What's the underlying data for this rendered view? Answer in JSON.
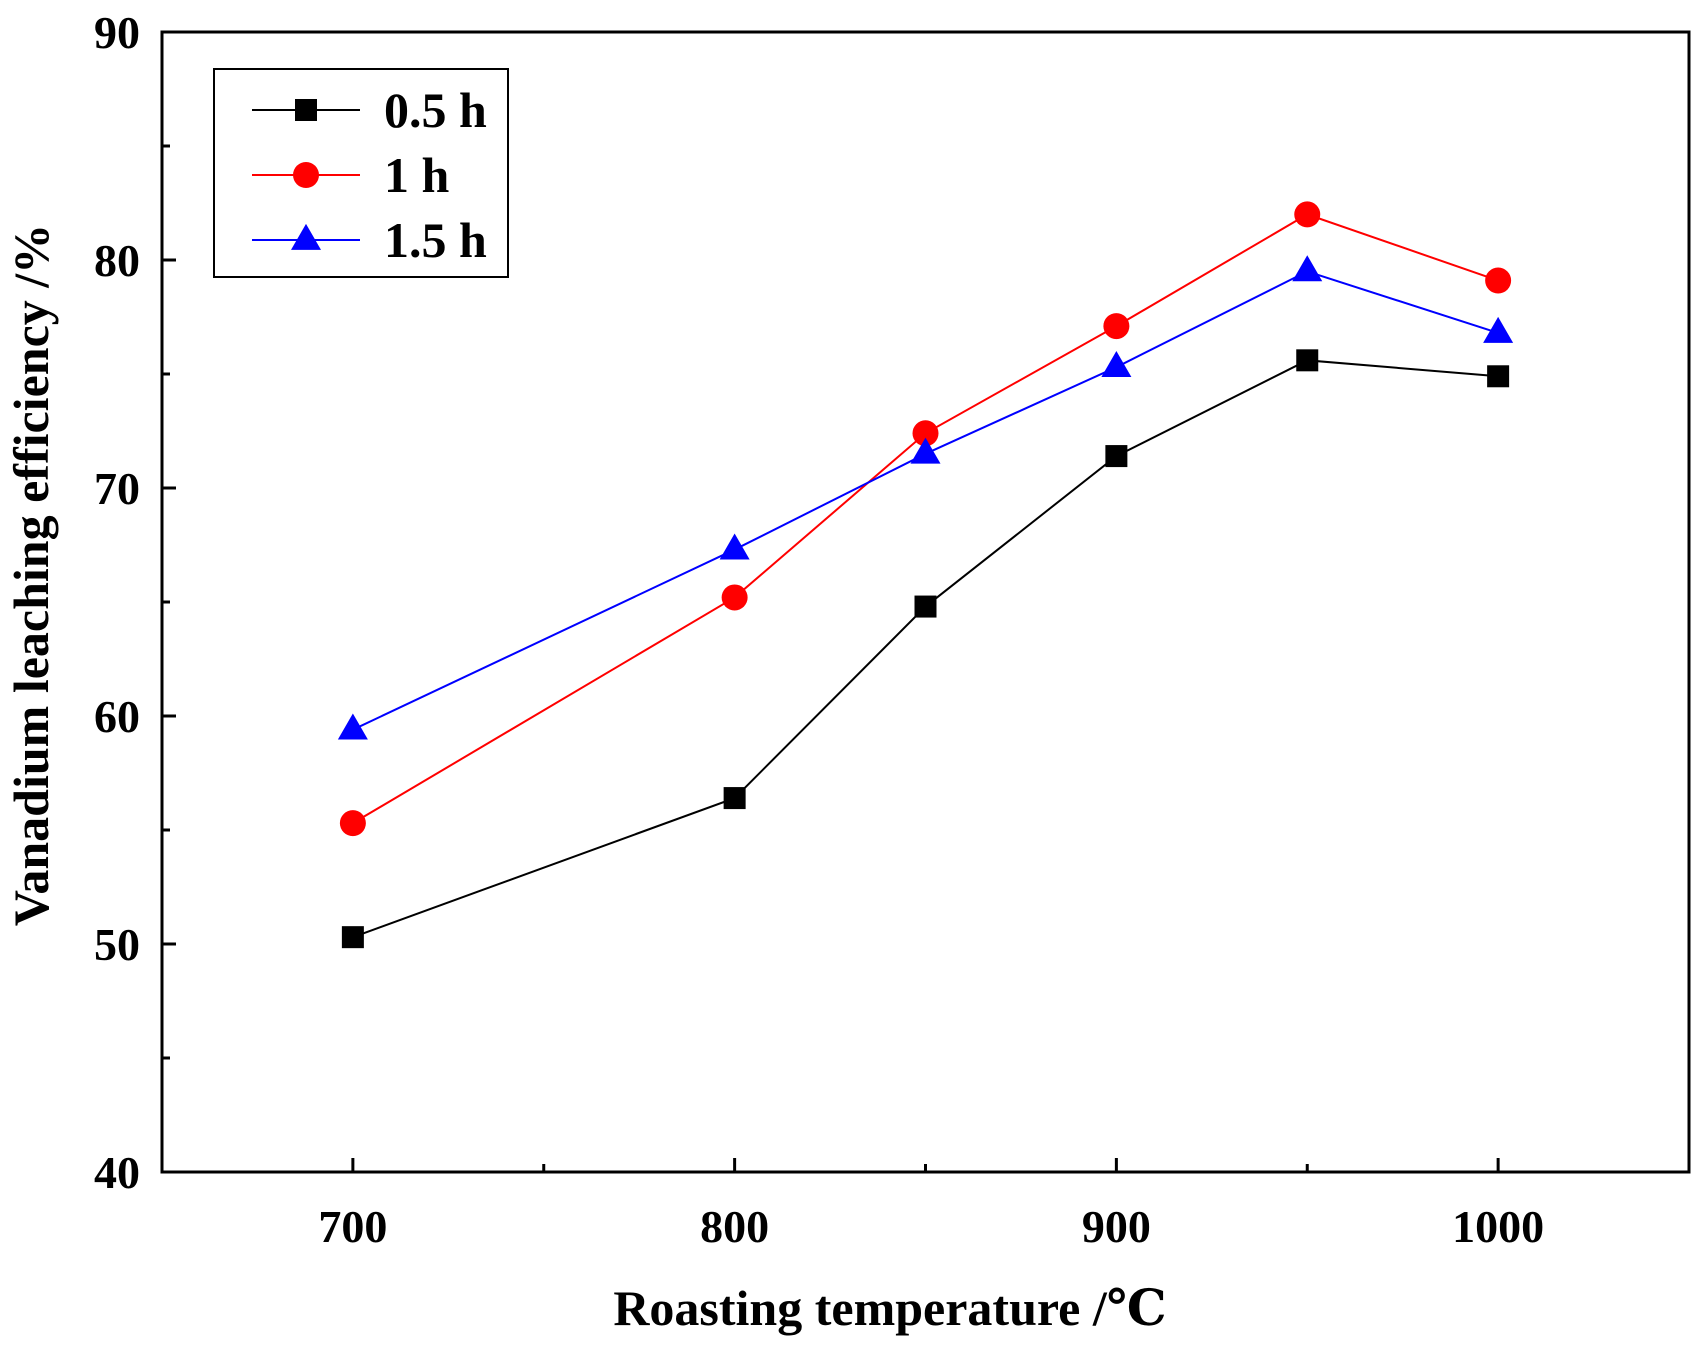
{
  "chart_data": {
    "type": "line",
    "title": "",
    "xlabel": "Roasting temperature /℃",
    "ylabel": "Vanadium leaching efficiency /%",
    "xlim": [
      650,
      1050
    ],
    "ylim": [
      40,
      90
    ],
    "x_ticks": [
      700,
      800,
      900,
      1000
    ],
    "x_minor_ticks": [
      750,
      850,
      950
    ],
    "y_ticks": [
      40,
      50,
      60,
      70,
      80,
      90
    ],
    "y_minor_ticks": [
      45,
      55,
      65,
      75,
      85
    ],
    "x_tick_labels": [
      "700",
      "800",
      "900",
      "1000"
    ],
    "y_tick_labels": [
      "40",
      "50",
      "60",
      "70",
      "80",
      "90"
    ],
    "grid": false,
    "legend_position": "top-left",
    "series": [
      {
        "name": "0.5 h",
        "color": "#000000",
        "marker": "square",
        "x": [
          700,
          800,
          850,
          900,
          950,
          1000
        ],
        "y": [
          50.3,
          56.4,
          64.8,
          71.4,
          75.6,
          74.9
        ]
      },
      {
        "name": "1 h",
        "color": "#ff0000",
        "marker": "circle",
        "x": [
          700,
          800,
          850,
          900,
          950,
          1000
        ],
        "y": [
          55.3,
          65.2,
          72.4,
          77.1,
          82.0,
          79.1
        ]
      },
      {
        "name": "1.5 h",
        "color": "#0000ff",
        "marker": "triangle",
        "x": [
          700,
          800,
          850,
          900,
          950,
          1000
        ],
        "y": [
          59.4,
          67.3,
          71.5,
          75.3,
          79.5,
          76.8
        ]
      }
    ]
  }
}
